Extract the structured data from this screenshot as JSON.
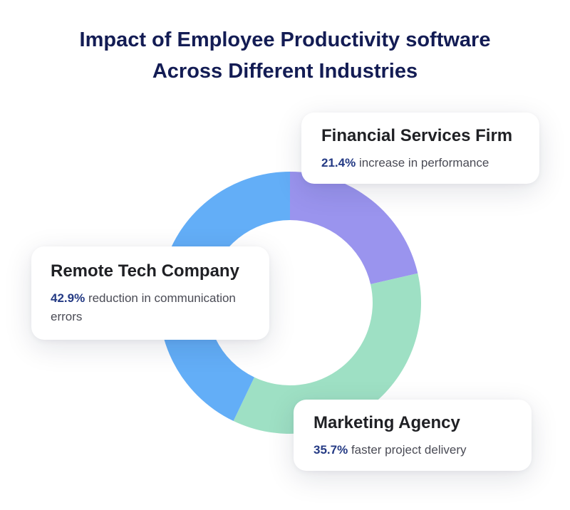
{
  "title": {
    "line1": "Impact of Employee Productivity software",
    "line2": "Across Different Industries"
  },
  "cards": {
    "financial": {
      "heading": "Financial Services Firm",
      "percent": "21.4%",
      "text": "increase in performance"
    },
    "remote": {
      "heading": "Remote Tech Company",
      "percent": "42.9%",
      "text": "reduction in communication errors"
    },
    "marketing": {
      "heading": "Marketing Agency",
      "percent": "35.7%",
      "text": "faster project delivery"
    }
  },
  "chart_data": {
    "type": "pie",
    "variant": "donut",
    "title": "Impact of Employee Productivity software Across Different Industries",
    "slices": [
      {
        "label": "Financial Services Firm",
        "value": 21.4,
        "color": "#9a94ee"
      },
      {
        "label": "Marketing Agency",
        "value": 35.7,
        "color": "#9ee0c4"
      },
      {
        "label": "Remote Tech Company",
        "value": 42.9,
        "color": "#63aef7"
      }
    ],
    "legend": "none"
  }
}
